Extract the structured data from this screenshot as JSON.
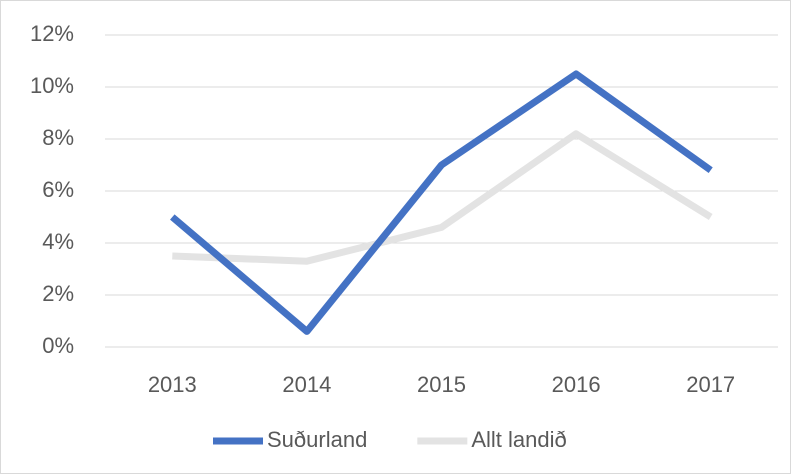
{
  "chart_data": {
    "type": "line",
    "categories": [
      "2013",
      "2014",
      "2015",
      "2016",
      "2017"
    ],
    "series": [
      {
        "name": "Suðurland",
        "color": "#4472c4",
        "values": [
          5.0,
          0.6,
          7.0,
          10.5,
          6.8
        ]
      },
      {
        "name": "Allt landið",
        "color": "#e3e3e3",
        "values": [
          3.5,
          3.3,
          4.6,
          8.2,
          5.0
        ]
      }
    ],
    "ylim": [
      0,
      12
    ],
    "yticks": [
      {
        "value": 0,
        "label": "0%"
      },
      {
        "value": 2,
        "label": "2%"
      },
      {
        "value": 4,
        "label": "4%"
      },
      {
        "value": 6,
        "label": "6%"
      },
      {
        "value": 8,
        "label": "8%"
      },
      {
        "value": 10,
        "label": "10%"
      },
      {
        "value": 12,
        "label": "12%"
      }
    ],
    "grid": true,
    "legend": "bottom"
  }
}
